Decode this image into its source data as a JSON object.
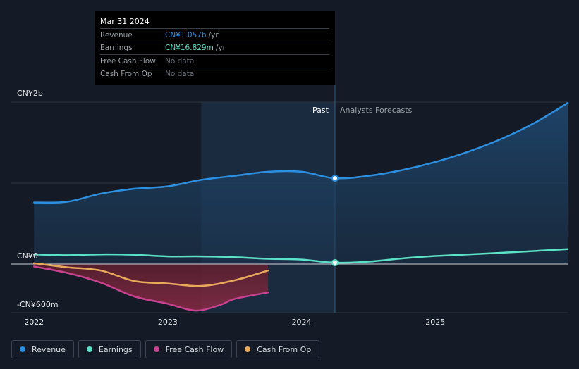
{
  "tooltip": {
    "date": "Mar 31 2024",
    "rows": [
      {
        "label": "Revenue",
        "value": "CN¥1.057b",
        "unit": "/yr",
        "color": "#2d8fe0"
      },
      {
        "label": "Earnings",
        "value": "CN¥16.829m",
        "unit": "/yr",
        "color": "#5ce0c6"
      },
      {
        "label": "Free Cash Flow",
        "value": "No data",
        "unit": "",
        "color": ""
      },
      {
        "label": "Cash From Op",
        "value": "No data",
        "unit": "",
        "color": ""
      }
    ]
  },
  "legend": [
    {
      "label": "Revenue",
      "color": "#2d8fe0"
    },
    {
      "label": "Earnings",
      "color": "#5ce0c6"
    },
    {
      "label": "Free Cash Flow",
      "color": "#c8428f"
    },
    {
      "label": "Cash From Op",
      "color": "#e8a95c"
    }
  ],
  "chart_data": {
    "type": "line",
    "title": "",
    "ylabel": "",
    "xlabel": "",
    "y_tick_labels": [
      {
        "value": 2000,
        "label": "CN¥2b"
      },
      {
        "value": 0,
        "label": "CN¥0"
      },
      {
        "value": -600,
        "label": "-CN¥600m"
      }
    ],
    "x_tick_labels": [
      {
        "value": 2022.0,
        "label": "2022"
      },
      {
        "value": 2023.0,
        "label": "2023"
      },
      {
        "value": 2024.0,
        "label": "2024"
      },
      {
        "value": 2025.0,
        "label": "2025"
      }
    ],
    "xlim": [
      2021.83,
      2025.99
    ],
    "ylim": [
      -600,
      2000
    ],
    "gridlines_y": [
      2000,
      1000,
      0
    ],
    "divider_x": 2024.25,
    "highlight_start_x": 2023.25,
    "past_label": "Past",
    "forecast_label": "Analysts Forecasts",
    "series": [
      {
        "name": "Revenue",
        "color": "#2d8fe0",
        "fill": true,
        "x": [
          2022.0,
          2022.25,
          2022.5,
          2022.75,
          2023.0,
          2023.25,
          2023.5,
          2023.75,
          2024.0,
          2024.25,
          2024.5,
          2024.75,
          2025.0,
          2025.25,
          2025.5,
          2025.75,
          2025.99
        ],
        "y": [
          760,
          770,
          870,
          930,
          960,
          1040,
          1090,
          1140,
          1140,
          1060,
          1090,
          1160,
          1260,
          1390,
          1550,
          1750,
          1990
        ]
      },
      {
        "name": "Earnings",
        "color": "#5ce0c6",
        "fill": false,
        "x": [
          2022.0,
          2022.25,
          2022.5,
          2022.75,
          2023.0,
          2023.25,
          2023.5,
          2023.75,
          2024.0,
          2024.25,
          2024.5,
          2024.75,
          2025.0,
          2025.5,
          2025.99
        ],
        "y": [
          120,
          110,
          120,
          115,
          95,
          95,
          85,
          65,
          55,
          17,
          30,
          70,
          100,
          140,
          185
        ]
      },
      {
        "name": "Free Cash Flow",
        "color": "#c8428f",
        "fill": true,
        "x": [
          2022.0,
          2022.25,
          2022.5,
          2022.75,
          2023.0,
          2023.15,
          2023.25,
          2023.4,
          2023.5,
          2023.75
        ],
        "y": [
          -30,
          -110,
          -230,
          -400,
          -490,
          -560,
          -570,
          -500,
          -430,
          -350
        ]
      },
      {
        "name": "Cash From Op",
        "color": "#e8a95c",
        "fill": false,
        "x": [
          2022.0,
          2022.25,
          2022.5,
          2022.75,
          2023.0,
          2023.25,
          2023.5,
          2023.75
        ],
        "y": [
          10,
          -40,
          -80,
          -210,
          -240,
          -270,
          -200,
          -80
        ]
      }
    ],
    "markers": [
      {
        "series": "Revenue",
        "x": 2024.25,
        "y": 1060
      },
      {
        "series": "Earnings",
        "x": 2024.25,
        "y": 17
      }
    ]
  }
}
